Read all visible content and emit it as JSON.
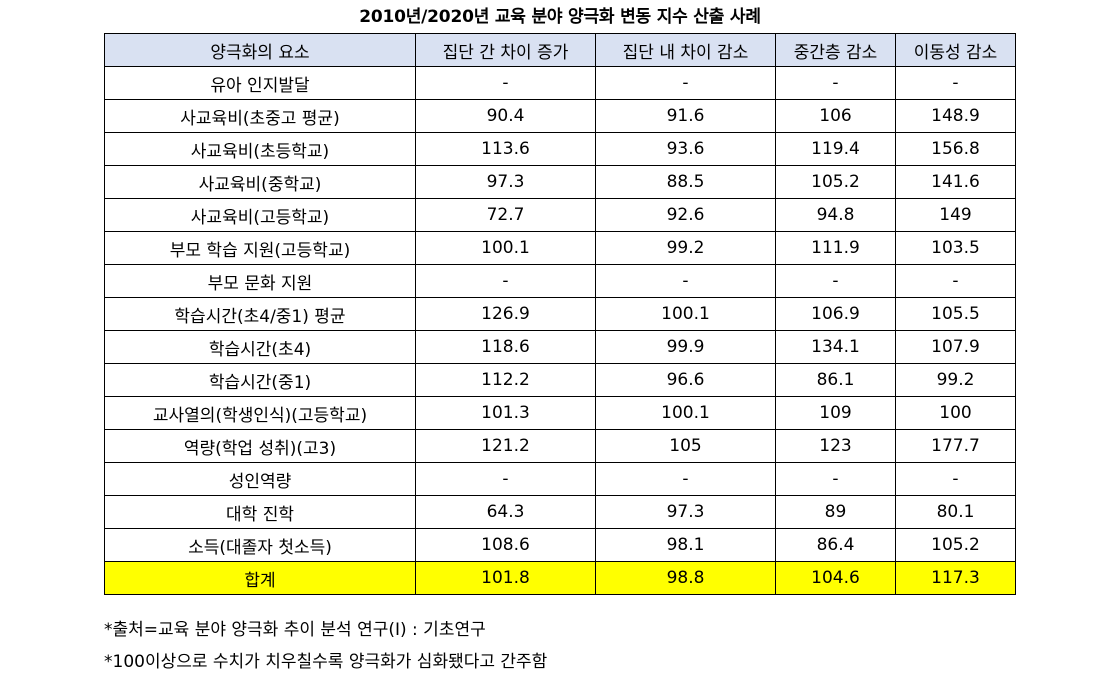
{
  "title": "2010년/2020년 교육 분야 양극화 변동 지수 산출 사례",
  "table": {
    "headers": [
      "양극화의 요소",
      "집단 간 차이 증가",
      "집단 내 차이 감소",
      "중간층 감소",
      "이동성 감소"
    ],
    "rows": [
      [
        "유아 인지발달",
        "-",
        "-",
        "-",
        "-"
      ],
      [
        "사교육비(초중고 평균)",
        "90.4",
        "91.6",
        "106",
        "148.9"
      ],
      [
        "사교육비(초등학교)",
        "113.6",
        "93.6",
        "119.4",
        "156.8"
      ],
      [
        "사교육비(중학교)",
        "97.3",
        "88.5",
        "105.2",
        "141.6"
      ],
      [
        "사교육비(고등학교)",
        "72.7",
        "92.6",
        "94.8",
        "149"
      ],
      [
        "부모 학습 지원(고등학교)",
        "100.1",
        "99.2",
        "111.9",
        "103.5"
      ],
      [
        "부모 문화 지원",
        "-",
        "-",
        "-",
        "-"
      ],
      [
        "학습시간(초4/중1) 평균",
        "126.9",
        "100.1",
        "106.9",
        "105.5"
      ],
      [
        "학습시간(초4)",
        "118.6",
        "99.9",
        "134.1",
        "107.9"
      ],
      [
        "학습시간(중1)",
        "112.2",
        "96.6",
        "86.1",
        "99.2"
      ],
      [
        "교사열의(학생인식)(고등학교)",
        "101.3",
        "100.1",
        "109",
        "100"
      ],
      [
        "역량(학업 성취)(고3)",
        "121.2",
        "105",
        "123",
        "177.7"
      ],
      [
        "성인역량",
        "-",
        "-",
        "-",
        "-"
      ],
      [
        "대학 진학",
        "64.3",
        "97.3",
        "89",
        "80.1"
      ],
      [
        "소득(대졸자 첫소득)",
        "108.6",
        "98.1",
        "86.4",
        "105.2"
      ]
    ],
    "total": [
      "합계",
      "101.8",
      "98.8",
      "104.6",
      "117.3"
    ]
  },
  "notes": [
    "*출처=교육 분야 양극화 추이 분석 연구(Ⅰ) : 기초연구",
    "*100이상으로 수치가 치우칠수록 양극화가 심화됐다고 간주함"
  ],
  "colors": {
    "header_bg": "#d9e1f2",
    "total_row_bg": "#ffff00",
    "border": "#000000"
  }
}
